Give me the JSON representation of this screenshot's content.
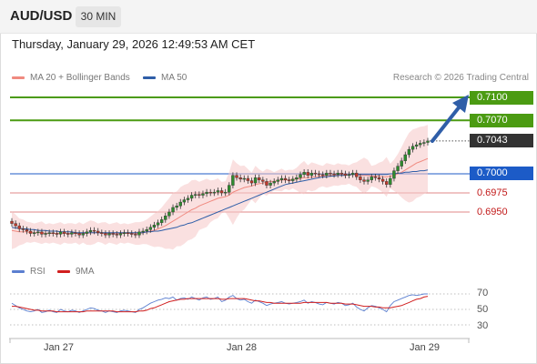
{
  "header": {
    "symbol": "AUD/USD",
    "timeframe": "30 MIN",
    "datetime": "Thursday, January 29, 2026 12:49:53 AM CET"
  },
  "legend": {
    "ma20_label": "MA 20 + Bollinger Bands",
    "ma50_label": "MA 50",
    "credit": "Research © 2026 Trading Central"
  },
  "price_tags": {
    "t1": "0.7100",
    "t2": "0.7070",
    "current": "0.7043",
    "pivot": "0.7000",
    "s1": "0.6975",
    "s2": "0.6950"
  },
  "rsi_legend": {
    "rsi_label": "RSI",
    "ma_label": "9MA"
  },
  "rsi_levels": {
    "l70": "70",
    "l50": "50",
    "l30": "30"
  },
  "date_labels": {
    "d1": "Jan 27",
    "d2": "Jan 28",
    "d3": "Jan 29"
  },
  "colors": {
    "green": "#4b9b12",
    "blue": "#1c5bc7",
    "red": "#c21a1a",
    "candle_up": "#2e8b2e",
    "candle_down": "#c0392b",
    "bollinger_fill": "#f6c7c7",
    "ma20": "#f08a80",
    "ma50": "#2f5ea8",
    "rsi": "#5b7fd0",
    "rsi_ma": "#d11f1f"
  },
  "chart_data": {
    "type": "candlestick",
    "symbol": "AUD/USD",
    "timeframe": "30 MIN",
    "x_tick_labels": [
      "Jan 27",
      "Jan 28",
      "Jan 29"
    ],
    "levels": [
      {
        "label": "0.7100",
        "value": 0.71,
        "kind": "resistance"
      },
      {
        "label": "0.7070",
        "value": 0.707,
        "kind": "resistance"
      },
      {
        "label": "0.7043",
        "value": 0.7043,
        "kind": "last-price"
      },
      {
        "label": "0.7000",
        "value": 0.7,
        "kind": "pivot"
      },
      {
        "label": "0.6975",
        "value": 0.6975,
        "kind": "support"
      },
      {
        "label": "0.6950",
        "value": 0.695,
        "kind": "support"
      }
    ],
    "close": [
      0.6935,
      0.6932,
      0.6928,
      0.6927,
      0.6925,
      0.6922,
      0.6923,
      0.6924,
      0.6921,
      0.6922,
      0.6923,
      0.6922,
      0.6921,
      0.6924,
      0.6922,
      0.6921,
      0.6923,
      0.6922,
      0.692,
      0.6922,
      0.6924,
      0.6926,
      0.6925,
      0.6923,
      0.6922,
      0.692,
      0.6922,
      0.6921,
      0.692,
      0.6922,
      0.6923,
      0.6922,
      0.6921,
      0.692,
      0.6924,
      0.6925,
      0.6927,
      0.693,
      0.6933,
      0.6936,
      0.694,
      0.6945,
      0.695,
      0.6956,
      0.6958,
      0.6963,
      0.6966,
      0.6968,
      0.6972,
      0.6973,
      0.6972,
      0.6974,
      0.6976,
      0.6975,
      0.6976,
      0.6978,
      0.6975,
      0.6976,
      0.6985,
      0.6998,
      0.6995,
      0.6993,
      0.6994,
      0.6991,
      0.6988,
      0.6995,
      0.6992,
      0.699,
      0.6985,
      0.6988,
      0.699,
      0.6992,
      0.6994,
      0.6992,
      0.6991,
      0.6993,
      0.6995,
      0.6999,
      0.7002,
      0.6998,
      0.7001,
      0.7,
      0.6999,
      0.6998,
      0.7001,
      0.7,
      0.6999,
      0.7001,
      0.7,
      0.6998,
      0.6999,
      0.7001,
      0.6996,
      0.6992,
      0.699,
      0.6992,
      0.6996,
      0.6995,
      0.6993,
      0.699,
      0.6986,
      0.6994,
      0.7004,
      0.701,
      0.7017,
      0.7025,
      0.7032,
      0.7036,
      0.7038,
      0.704,
      0.7041,
      0.7043
    ],
    "ma20": [
      0.6926,
      0.6925,
      0.6924,
      0.6924,
      0.6924,
      0.6923,
      0.6923,
      0.6923,
      0.6923,
      0.6922,
      0.6922,
      0.6922,
      0.6922,
      0.6922,
      0.6922,
      0.6922,
      0.6922,
      0.6922,
      0.6922,
      0.6922,
      0.6922,
      0.6923,
      0.6923,
      0.6923,
      0.6923,
      0.6922,
      0.6922,
      0.6922,
      0.6922,
      0.6922,
      0.6922,
      0.6922,
      0.6922,
      0.6922,
      0.6922,
      0.6923,
      0.6924,
      0.6925,
      0.6926,
      0.6928,
      0.693,
      0.6932,
      0.6935,
      0.6938,
      0.6941,
      0.6944,
      0.6947,
      0.695,
      0.6953,
      0.6955,
      0.6958,
      0.696,
      0.6962,
      0.6964,
      0.6966,
      0.6968,
      0.6969,
      0.697,
      0.6972,
      0.6976,
      0.6978,
      0.698,
      0.6982,
      0.6983,
      0.6984,
      0.6986,
      0.6987,
      0.6988,
      0.6989,
      0.699,
      0.699,
      0.6991,
      0.6992,
      0.6992,
      0.6992,
      0.6993,
      0.6993,
      0.6994,
      0.6995,
      0.6995,
      0.6996,
      0.6996,
      0.6997,
      0.6997,
      0.6998,
      0.6998,
      0.6998,
      0.6999,
      0.6999,
      0.6999,
      0.6999,
      0.6999,
      0.6999,
      0.6998,
      0.6998,
      0.6998,
      0.6997,
      0.6997,
      0.6997,
      0.6996,
      0.6996,
      0.6997,
      0.6998,
      0.7,
      0.7002,
      0.7005,
      0.7008,
      0.7011,
      0.7014,
      0.7016,
      0.7018,
      0.702
    ],
    "ma50": [
      0.693,
      0.6929,
      0.6929,
      0.6928,
      0.6928,
      0.6927,
      0.6927,
      0.6926,
      0.6926,
      0.6926,
      0.6925,
      0.6925,
      0.6925,
      0.6924,
      0.6924,
      0.6924,
      0.6924,
      0.6923,
      0.6923,
      0.6923,
      0.6923,
      0.6923,
      0.6923,
      0.6923,
      0.6923,
      0.6923,
      0.6923,
      0.6923,
      0.6923,
      0.6923,
      0.6923,
      0.6923,
      0.6923,
      0.6923,
      0.6923,
      0.6923,
      0.6924,
      0.6924,
      0.6925,
      0.6925,
      0.6926,
      0.6927,
      0.6928,
      0.6929,
      0.693,
      0.6932,
      0.6933,
      0.6935,
      0.6936,
      0.6938,
      0.694,
      0.6942,
      0.6944,
      0.6946,
      0.6948,
      0.695,
      0.6952,
      0.6954,
      0.6956,
      0.6958,
      0.696,
      0.6962,
      0.6964,
      0.6966,
      0.6968,
      0.697,
      0.6972,
      0.6974,
      0.6976,
      0.6978,
      0.698,
      0.6982,
      0.6984,
      0.6986,
      0.6987,
      0.6988,
      0.6989,
      0.699,
      0.6991,
      0.6992,
      0.6993,
      0.6994,
      0.6995,
      0.6996,
      0.6996,
      0.6997,
      0.6997,
      0.6998,
      0.6998,
      0.6998,
      0.6999,
      0.6999,
      0.6999,
      0.6999,
      0.6999,
      0.6999,
      0.6999,
      0.6999,
      0.6999,
      0.6999,
      0.6999,
      0.7,
      0.7,
      0.7001,
      0.7001,
      0.7002,
      0.7002,
      0.7003,
      0.7003,
      0.7004,
      0.7004,
      0.7005
    ],
    "rsi": [
      58,
      55,
      52,
      50,
      48,
      47,
      48,
      50,
      46,
      47,
      49,
      47,
      46,
      50,
      48,
      47,
      49,
      48,
      46,
      48,
      50,
      52,
      51,
      49,
      48,
      46,
      48,
      47,
      46,
      48,
      49,
      48,
      47,
      46,
      50,
      52,
      55,
      58,
      60,
      62,
      63,
      65,
      64,
      66,
      62,
      64,
      65,
      63,
      66,
      64,
      62,
      65,
      66,
      63,
      64,
      66,
      60,
      62,
      66,
      68,
      64,
      62,
      63,
      60,
      58,
      62,
      60,
      58,
      55,
      57,
      58,
      59,
      60,
      58,
      57,
      58,
      59,
      60,
      62,
      58,
      60,
      59,
      57,
      56,
      59,
      58,
      57,
      59,
      58,
      55,
      56,
      58,
      53,
      50,
      48,
      52,
      55,
      54,
      52,
      50,
      47,
      55,
      60,
      62,
      64,
      66,
      68,
      69,
      68,
      69,
      70,
      70
    ],
    "rsi_ma": [
      54,
      54,
      53,
      52,
      51,
      50,
      49,
      49,
      48,
      48,
      48,
      48,
      47,
      47,
      47,
      47,
      47,
      47,
      47,
      47,
      48,
      48,
      48,
      48,
      48,
      48,
      48,
      48,
      47,
      47,
      47,
      47,
      47,
      47,
      48,
      48,
      49,
      51,
      52,
      54,
      56,
      58,
      60,
      61,
      62,
      63,
      63,
      64,
      64,
      64,
      64,
      64,
      64,
      64,
      64,
      64,
      63,
      63,
      64,
      64,
      64,
      64,
      64,
      63,
      62,
      61,
      61,
      60,
      59,
      59,
      58,
      58,
      58,
      58,
      58,
      58,
      58,
      58,
      59,
      59,
      59,
      59,
      59,
      59,
      59,
      58,
      58,
      58,
      58,
      57,
      57,
      57,
      56,
      55,
      54,
      54,
      54,
      53,
      53,
      52,
      52,
      52,
      53,
      54,
      55,
      57,
      59,
      61,
      63,
      64,
      66,
      67
    ],
    "rsi_levels": [
      70,
      50,
      30
    ]
  }
}
